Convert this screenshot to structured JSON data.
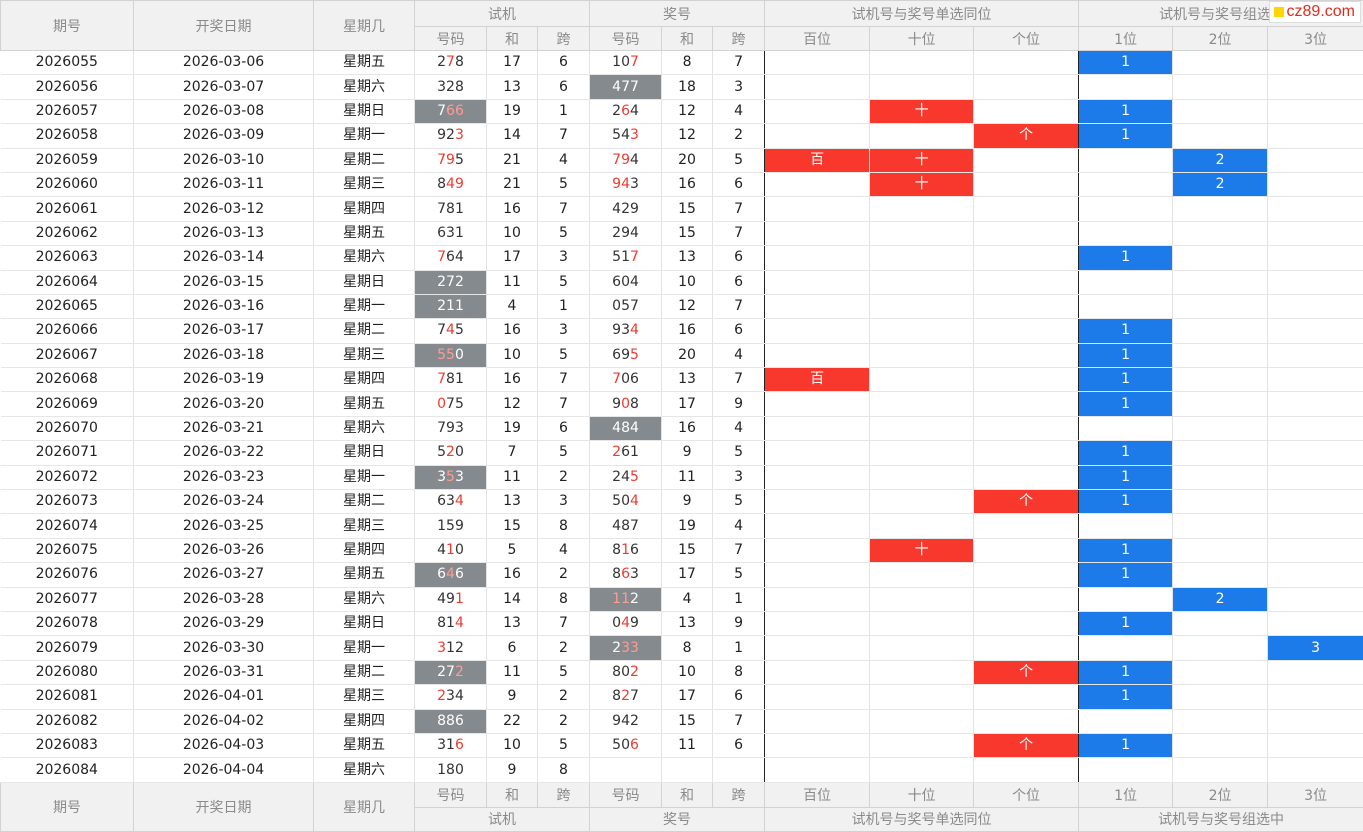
{
  "site_badge": "cz89.com",
  "headers": {
    "period": "期号",
    "date": "开奖日期",
    "weekday": "星期几",
    "trial_group": "试机",
    "draw_group": "奖号",
    "single_group": "试机号与奖号单选同位",
    "combo_group_top": "试机号与奖号组选",
    "combo_group_bottom": "试机号与奖号组选中",
    "number": "号码",
    "sum": "和",
    "span": "跨",
    "hundreds": "百位",
    "tens": "十位",
    "ones": "个位",
    "pos1": "1位",
    "pos2": "2位",
    "pos3": "3位"
  },
  "marks": {
    "hundreds": "百",
    "tens": "十",
    "ones": "个"
  },
  "rows": [
    {
      "period": "2026055",
      "date": "2026-03-06",
      "weekday": "星期五",
      "trial": "278",
      "trial_red": [
        1
      ],
      "trial_sum": "17",
      "trial_span": "6",
      "draw": "107",
      "draw_red": [
        2
      ],
      "draw_sum": "8",
      "draw_span": "7",
      "single": [],
      "combo": "1",
      "combo_pos": 1
    },
    {
      "period": "2026056",
      "date": "2026-03-07",
      "weekday": "星期六",
      "trial": "328",
      "trial_red": [],
      "trial_sum": "13",
      "trial_span": "6",
      "draw": "477",
      "draw_red": [],
      "draw_hl": true,
      "draw_sum": "18",
      "draw_span": "3",
      "single": [],
      "combo": "",
      "combo_pos": 0
    },
    {
      "period": "2026057",
      "date": "2026-03-08",
      "weekday": "星期日",
      "trial": "766",
      "trial_red": [
        1,
        2
      ],
      "trial_hl": true,
      "trial_sum": "19",
      "trial_span": "1",
      "draw": "264",
      "draw_red": [
        1
      ],
      "draw_sum": "12",
      "draw_span": "4",
      "single": [
        "tens"
      ],
      "combo": "1",
      "combo_pos": 1
    },
    {
      "period": "2026058",
      "date": "2026-03-09",
      "weekday": "星期一",
      "trial": "923",
      "trial_red": [
        2
      ],
      "trial_sum": "14",
      "trial_span": "7",
      "draw": "543",
      "draw_red": [
        2
      ],
      "draw_sum": "12",
      "draw_span": "2",
      "single": [
        "ones"
      ],
      "combo": "1",
      "combo_pos": 1
    },
    {
      "period": "2026059",
      "date": "2026-03-10",
      "weekday": "星期二",
      "trial": "795",
      "trial_red": [
        0,
        1
      ],
      "trial_sum": "21",
      "trial_span": "4",
      "draw": "794",
      "draw_red": [
        0,
        1
      ],
      "draw_sum": "20",
      "draw_span": "5",
      "single": [
        "hundreds",
        "tens"
      ],
      "combo": "2",
      "combo_pos": 2
    },
    {
      "period": "2026060",
      "date": "2026-03-11",
      "weekday": "星期三",
      "trial": "849",
      "trial_red": [
        1,
        2
      ],
      "trial_sum": "21",
      "trial_span": "5",
      "draw": "943",
      "draw_red": [
        0,
        1
      ],
      "draw_sum": "16",
      "draw_span": "6",
      "single": [
        "tens"
      ],
      "combo": "2",
      "combo_pos": 2
    },
    {
      "period": "2026061",
      "date": "2026-03-12",
      "weekday": "星期四",
      "trial": "781",
      "trial_red": [],
      "trial_sum": "16",
      "trial_span": "7",
      "draw": "429",
      "draw_red": [],
      "draw_sum": "15",
      "draw_span": "7",
      "single": [],
      "combo": "",
      "combo_pos": 0
    },
    {
      "period": "2026062",
      "date": "2026-03-13",
      "weekday": "星期五",
      "trial": "631",
      "trial_red": [],
      "trial_sum": "10",
      "trial_span": "5",
      "draw": "294",
      "draw_red": [],
      "draw_sum": "15",
      "draw_span": "7",
      "single": [],
      "combo": "",
      "combo_pos": 0
    },
    {
      "period": "2026063",
      "date": "2026-03-14",
      "weekday": "星期六",
      "trial": "764",
      "trial_red": [
        0
      ],
      "trial_sum": "17",
      "trial_span": "3",
      "draw": "517",
      "draw_red": [
        2
      ],
      "draw_sum": "13",
      "draw_span": "6",
      "single": [],
      "combo": "1",
      "combo_pos": 1
    },
    {
      "period": "2026064",
      "date": "2026-03-15",
      "weekday": "星期日",
      "trial": "272",
      "trial_red": [],
      "trial_hl": true,
      "trial_sum": "11",
      "trial_span": "5",
      "draw": "604",
      "draw_red": [],
      "draw_sum": "10",
      "draw_span": "6",
      "single": [],
      "combo": "",
      "combo_pos": 0
    },
    {
      "period": "2026065",
      "date": "2026-03-16",
      "weekday": "星期一",
      "trial": "211",
      "trial_red": [],
      "trial_hl": true,
      "trial_sum": "4",
      "trial_span": "1",
      "draw": "057",
      "draw_red": [],
      "draw_sum": "12",
      "draw_span": "7",
      "single": [],
      "combo": "",
      "combo_pos": 0
    },
    {
      "period": "2026066",
      "date": "2026-03-17",
      "weekday": "星期二",
      "trial": "745",
      "trial_red": [
        1
      ],
      "trial_sum": "16",
      "trial_span": "3",
      "draw": "934",
      "draw_red": [
        2
      ],
      "draw_sum": "16",
      "draw_span": "6",
      "single": [],
      "combo": "1",
      "combo_pos": 1
    },
    {
      "period": "2026067",
      "date": "2026-03-18",
      "weekday": "星期三",
      "trial": "550",
      "trial_red": [
        0,
        1
      ],
      "trial_hl": true,
      "trial_sum": "10",
      "trial_span": "5",
      "draw": "695",
      "draw_red": [
        2
      ],
      "draw_sum": "20",
      "draw_span": "4",
      "single": [],
      "combo": "1",
      "combo_pos": 1
    },
    {
      "period": "2026068",
      "date": "2026-03-19",
      "weekday": "星期四",
      "trial": "781",
      "trial_red": [
        0
      ],
      "trial_sum": "16",
      "trial_span": "7",
      "draw": "706",
      "draw_red": [
        0
      ],
      "draw_sum": "13",
      "draw_span": "7",
      "single": [
        "hundreds"
      ],
      "combo": "1",
      "combo_pos": 1
    },
    {
      "period": "2026069",
      "date": "2026-03-20",
      "weekday": "星期五",
      "trial": "075",
      "trial_red": [
        0
      ],
      "trial_sum": "12",
      "trial_span": "7",
      "draw": "908",
      "draw_red": [
        1
      ],
      "draw_sum": "17",
      "draw_span": "9",
      "single": [],
      "combo": "1",
      "combo_pos": 1
    },
    {
      "period": "2026070",
      "date": "2026-03-21",
      "weekday": "星期六",
      "trial": "793",
      "trial_red": [],
      "trial_sum": "19",
      "trial_span": "6",
      "draw": "484",
      "draw_red": [],
      "draw_hl": true,
      "draw_sum": "16",
      "draw_span": "4",
      "single": [],
      "combo": "",
      "combo_pos": 0
    },
    {
      "period": "2026071",
      "date": "2026-03-22",
      "weekday": "星期日",
      "trial": "520",
      "trial_red": [
        1
      ],
      "trial_sum": "7",
      "trial_span": "5",
      "draw": "261",
      "draw_red": [
        0
      ],
      "draw_sum": "9",
      "draw_span": "5",
      "single": [],
      "combo": "1",
      "combo_pos": 1
    },
    {
      "period": "2026072",
      "date": "2026-03-23",
      "weekday": "星期一",
      "trial": "353",
      "trial_red": [
        1
      ],
      "trial_hl": true,
      "trial_sum": "11",
      "trial_span": "2",
      "draw": "245",
      "draw_red": [
        2
      ],
      "draw_sum": "11",
      "draw_span": "3",
      "single": [],
      "combo": "1",
      "combo_pos": 1
    },
    {
      "period": "2026073",
      "date": "2026-03-24",
      "weekday": "星期二",
      "trial": "634",
      "trial_red": [
        2
      ],
      "trial_sum": "13",
      "trial_span": "3",
      "draw": "504",
      "draw_red": [
        2
      ],
      "draw_sum": "9",
      "draw_span": "5",
      "single": [
        "ones"
      ],
      "combo": "1",
      "combo_pos": 1
    },
    {
      "period": "2026074",
      "date": "2026-03-25",
      "weekday": "星期三",
      "trial": "159",
      "trial_red": [],
      "trial_sum": "15",
      "trial_span": "8",
      "draw": "487",
      "draw_red": [],
      "draw_sum": "19",
      "draw_span": "4",
      "single": [],
      "combo": "",
      "combo_pos": 0
    },
    {
      "period": "2026075",
      "date": "2026-03-26",
      "weekday": "星期四",
      "trial": "410",
      "trial_red": [
        1
      ],
      "trial_sum": "5",
      "trial_span": "4",
      "draw": "816",
      "draw_red": [
        1
      ],
      "draw_sum": "15",
      "draw_span": "7",
      "single": [
        "tens"
      ],
      "combo": "1",
      "combo_pos": 1
    },
    {
      "period": "2026076",
      "date": "2026-03-27",
      "weekday": "星期五",
      "trial": "646",
      "trial_red": [
        1
      ],
      "trial_hl": true,
      "trial_sum": "16",
      "trial_span": "2",
      "draw": "863",
      "draw_red": [
        1
      ],
      "draw_sum": "17",
      "draw_span": "5",
      "single": [],
      "combo": "1",
      "combo_pos": 1
    },
    {
      "period": "2026077",
      "date": "2026-03-28",
      "weekday": "星期六",
      "trial": "491",
      "trial_red": [
        2
      ],
      "trial_sum": "14",
      "trial_span": "8",
      "draw": "112",
      "draw_red": [
        0,
        1
      ],
      "draw_hl": true,
      "draw_sum": "4",
      "draw_span": "1",
      "single": [],
      "combo": "2",
      "combo_pos": 2
    },
    {
      "period": "2026078",
      "date": "2026-03-29",
      "weekday": "星期日",
      "trial": "814",
      "trial_red": [
        2
      ],
      "trial_sum": "13",
      "trial_span": "7",
      "draw": "049",
      "draw_red": [
        1
      ],
      "draw_sum": "13",
      "draw_span": "9",
      "single": [],
      "combo": "1",
      "combo_pos": 1
    },
    {
      "period": "2026079",
      "date": "2026-03-30",
      "weekday": "星期一",
      "trial": "312",
      "trial_red": [
        0
      ],
      "trial_sum": "6",
      "trial_span": "2",
      "draw": "233",
      "draw_red": [
        1,
        2
      ],
      "draw_hl": true,
      "draw_sum": "8",
      "draw_span": "1",
      "single": [],
      "combo": "3",
      "combo_pos": 3
    },
    {
      "period": "2026080",
      "date": "2026-03-31",
      "weekday": "星期二",
      "trial": "272",
      "trial_red": [
        2
      ],
      "trial_hl": true,
      "trial_sum": "11",
      "trial_span": "5",
      "draw": "802",
      "draw_red": [
        2
      ],
      "draw_sum": "10",
      "draw_span": "8",
      "single": [
        "ones"
      ],
      "combo": "1",
      "combo_pos": 1
    },
    {
      "period": "2026081",
      "date": "2026-04-01",
      "weekday": "星期三",
      "trial": "234",
      "trial_red": [
        0
      ],
      "trial_sum": "9",
      "trial_span": "2",
      "draw": "827",
      "draw_red": [
        1
      ],
      "draw_sum": "17",
      "draw_span": "6",
      "single": [],
      "combo": "1",
      "combo_pos": 1
    },
    {
      "period": "2026082",
      "date": "2026-04-02",
      "weekday": "星期四",
      "trial": "886",
      "trial_red": [],
      "trial_hl": true,
      "trial_sum": "22",
      "trial_span": "2",
      "draw": "942",
      "draw_red": [],
      "draw_sum": "15",
      "draw_span": "7",
      "single": [],
      "combo": "",
      "combo_pos": 0
    },
    {
      "period": "2026083",
      "date": "2026-04-03",
      "weekday": "星期五",
      "trial": "316",
      "trial_red": [
        2
      ],
      "trial_sum": "10",
      "trial_span": "5",
      "draw": "506",
      "draw_red": [
        2
      ],
      "draw_sum": "11",
      "draw_span": "6",
      "single": [
        "ones"
      ],
      "combo": "1",
      "combo_pos": 1
    },
    {
      "period": "2026084",
      "date": "2026-04-04",
      "weekday": "星期六",
      "trial": "180",
      "trial_red": [],
      "trial_sum": "9",
      "trial_span": "8",
      "draw": "",
      "draw_red": [],
      "draw_sum": "",
      "draw_span": "",
      "single": [],
      "combo": "",
      "combo_pos": 0
    }
  ]
}
